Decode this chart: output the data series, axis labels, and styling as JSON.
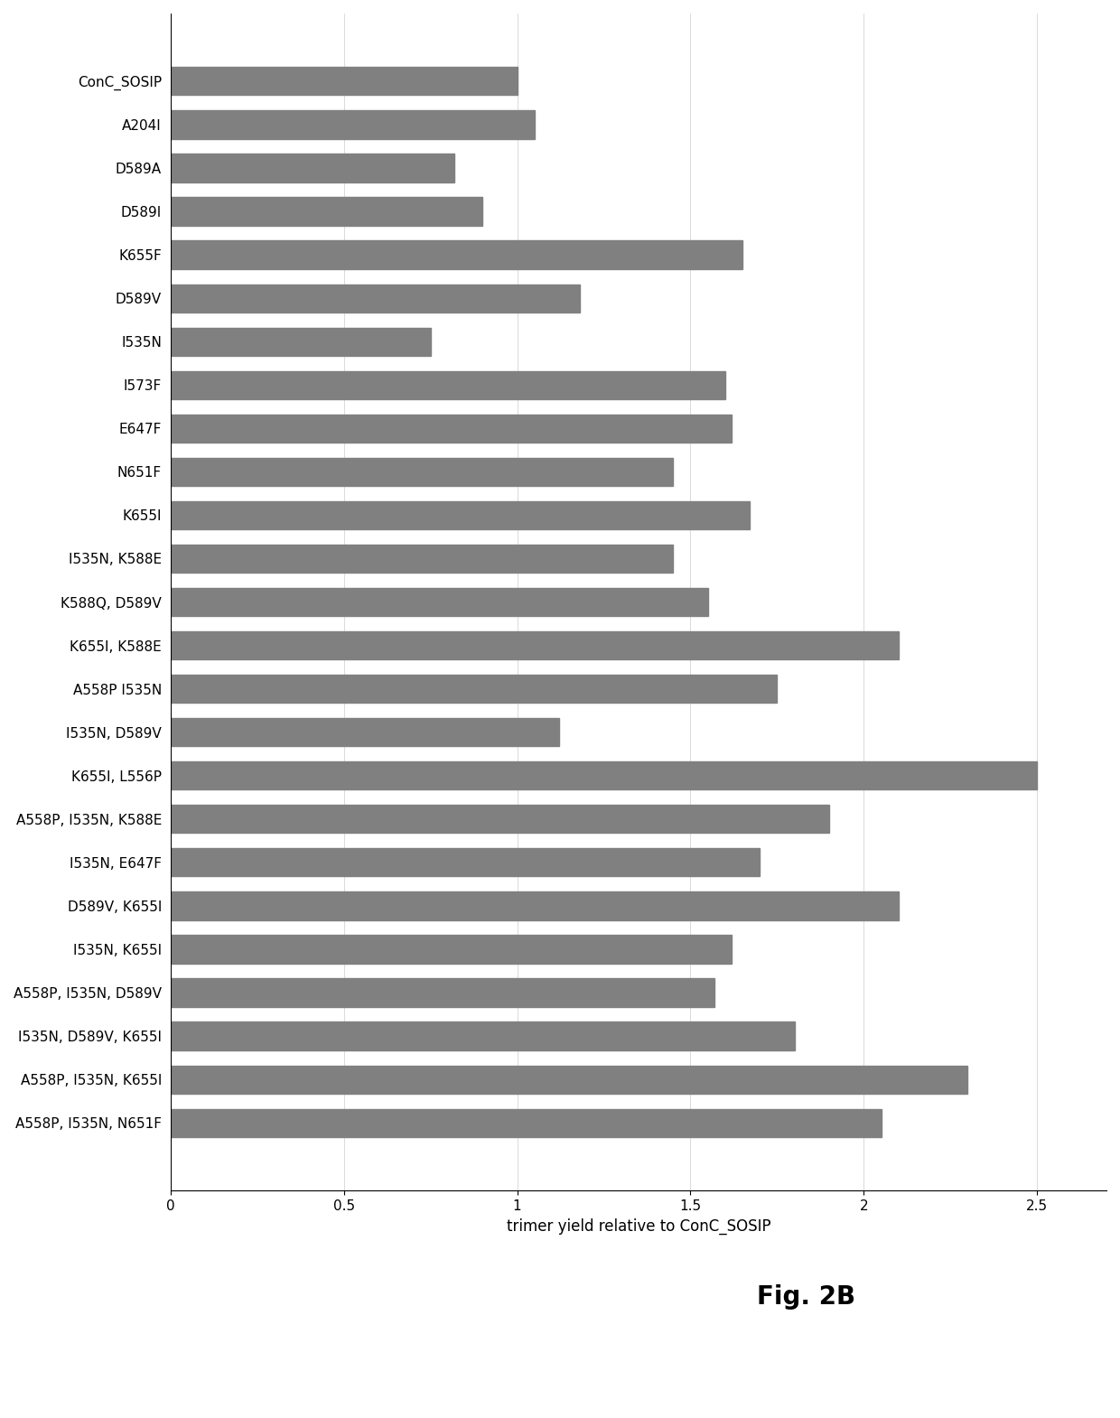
{
  "categories": [
    "ConC_SOSIP",
    "A204I",
    "D589A",
    "D589I",
    "K655F",
    "D589V",
    "I535N",
    "I573F",
    "E647F",
    "N651F",
    "K655I",
    "I535N, K588E",
    "K588Q, D589V",
    "K655I, K588E",
    "A558P I535N",
    "I535N, D589V",
    "K655I, L556P",
    "A558P, I535N, K588E",
    "I535N, E647F",
    "D589V, K655I",
    "I535N, K655I",
    "A558P, I535N, D589V",
    "I535N, D589V, K655I",
    "A558P, I535N, K655I",
    "A558P, I535N, N651F"
  ],
  "values": [
    1.0,
    1.05,
    0.82,
    0.9,
    1.65,
    1.18,
    0.75,
    1.6,
    1.62,
    1.45,
    1.67,
    1.45,
    1.55,
    2.1,
    1.75,
    1.12,
    2.5,
    1.9,
    1.7,
    2.1,
    1.62,
    1.57,
    1.8,
    2.3,
    2.05
  ],
  "bar_color": "#808080",
  "xlabel": "trimer yield relative to ConC_SOSIP",
  "xlim": [
    0,
    2.7
  ],
  "xticks": [
    0,
    0.5,
    1,
    1.5,
    2,
    2.5
  ],
  "xtick_labels": [
    "0",
    "0.5",
    "1",
    "1.5",
    "2",
    "2.5"
  ],
  "fig_caption": "Fig. 2B",
  "background_color": "#ffffff",
  "bar_height": 0.65,
  "label_fontsize": 11,
  "tick_fontsize": 11,
  "xlabel_fontsize": 12,
  "caption_fontsize": 20
}
